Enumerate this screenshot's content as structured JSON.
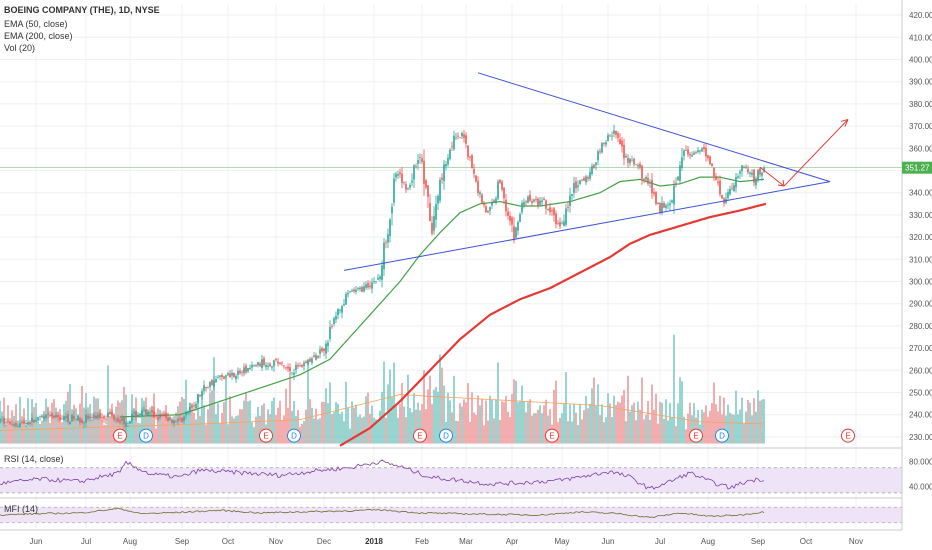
{
  "chart_data": {
    "type": "candlestick",
    "title": "BOEING COMPANY (THE), 1D, NYSE",
    "indicators": [
      "EMA (50, close)",
      "EMA (200, close)",
      "Vol (20)"
    ],
    "last_price": "351.27",
    "price_range": [
      225,
      425
    ],
    "price_ticks": [
      "420.00",
      "410.00",
      "400.00",
      "390.00",
      "380.00",
      "370.00",
      "360.00",
      "350.00",
      "340.00",
      "330.00",
      "320.00",
      "310.00",
      "300.00",
      "290.00",
      "280.00",
      "270.00",
      "260.00",
      "250.00",
      "240.00",
      "230.00"
    ],
    "price_tick_values": [
      420,
      410,
      400,
      390,
      380,
      370,
      360,
      350,
      340,
      330,
      320,
      310,
      300,
      290,
      280,
      270,
      260,
      250,
      240,
      230
    ],
    "x_range": [
      0,
      458
    ],
    "months": [
      {
        "label": "Jun",
        "x": 18
      },
      {
        "label": "Jul",
        "x": 43
      },
      {
        "label": "Aug",
        "x": 65
      },
      {
        "label": "Sep",
        "x": 91
      },
      {
        "label": "Oct",
        "x": 114
      },
      {
        "label": "Nov",
        "x": 138
      },
      {
        "label": "Dec",
        "x": 162
      },
      {
        "label": "2018",
        "x": 187
      },
      {
        "label": "Feb",
        "x": 211
      },
      {
        "label": "Mar",
        "x": 233
      },
      {
        "label": "Apr",
        "x": 256
      },
      {
        "label": "May",
        "x": 281
      },
      {
        "label": "Jun",
        "x": 304
      },
      {
        "label": "Jul",
        "x": 330
      },
      {
        "label": "Aug",
        "x": 354
      },
      {
        "label": "Sep",
        "x": 379
      },
      {
        "label": "Oct",
        "x": 403
      },
      {
        "label": "Nov",
        "x": 428
      }
    ],
    "anchors": [
      [
        0,
        237
      ],
      [
        10,
        236
      ],
      [
        25,
        239
      ],
      [
        40,
        238
      ],
      [
        55,
        240
      ],
      [
        62,
        237
      ],
      [
        70,
        241
      ],
      [
        80,
        239
      ],
      [
        90,
        237
      ],
      [
        96,
        243
      ],
      [
        102,
        252
      ],
      [
        110,
        257
      ],
      [
        120,
        259
      ],
      [
        130,
        263
      ],
      [
        138,
        264
      ],
      [
        145,
        260
      ],
      [
        152,
        263
      ],
      [
        158,
        266
      ],
      [
        163,
        272
      ],
      [
        168,
        285
      ],
      [
        175,
        295
      ],
      [
        182,
        297
      ],
      [
        190,
        302
      ],
      [
        193,
        320
      ],
      [
        198,
        348
      ],
      [
        204,
        342
      ],
      [
        210,
        358
      ],
      [
        216,
        322
      ],
      [
        220,
        345
      ],
      [
        226,
        363
      ],
      [
        232,
        366
      ],
      [
        238,
        344
      ],
      [
        244,
        330
      ],
      [
        250,
        345
      ],
      [
        257,
        320
      ],
      [
        262,
        337
      ],
      [
        272,
        335
      ],
      [
        280,
        325
      ],
      [
        287,
        342
      ],
      [
        295,
        348
      ],
      [
        300,
        360
      ],
      [
        307,
        368
      ],
      [
        312,
        356
      ],
      [
        318,
        352
      ],
      [
        324,
        345
      ],
      [
        330,
        333
      ],
      [
        336,
        338
      ],
      [
        341,
        359
      ],
      [
        346,
        356
      ],
      [
        352,
        360
      ],
      [
        357,
        349
      ],
      [
        362,
        336
      ],
      [
        367,
        345
      ],
      [
        372,
        353
      ],
      [
        377,
        346
      ],
      [
        382,
        351.27
      ]
    ],
    "ema50_anchors": [
      [
        60,
        239
      ],
      [
        90,
        240
      ],
      [
        110,
        246
      ],
      [
        130,
        252
      ],
      [
        150,
        258
      ],
      [
        165,
        265
      ],
      [
        178,
        278
      ],
      [
        190,
        290
      ],
      [
        200,
        300
      ],
      [
        210,
        312
      ],
      [
        220,
        322
      ],
      [
        230,
        331
      ],
      [
        240,
        335
      ],
      [
        250,
        336
      ],
      [
        260,
        334
      ],
      [
        270,
        334
      ],
      [
        285,
        336
      ],
      [
        300,
        340
      ],
      [
        310,
        345
      ],
      [
        320,
        346
      ],
      [
        330,
        343
      ],
      [
        340,
        344
      ],
      [
        350,
        347
      ],
      [
        360,
        347
      ],
      [
        370,
        345
      ],
      [
        382,
        346
      ]
    ],
    "ema200_anchors": [
      [
        170,
        226
      ],
      [
        185,
        234
      ],
      [
        200,
        246
      ],
      [
        215,
        260
      ],
      [
        230,
        274
      ],
      [
        245,
        285
      ],
      [
        260,
        292
      ],
      [
        275,
        297
      ],
      [
        290,
        304
      ],
      [
        305,
        311
      ],
      [
        315,
        317
      ],
      [
        325,
        321
      ],
      [
        340,
        325
      ],
      [
        355,
        329
      ],
      [
        370,
        332
      ],
      [
        383,
        335
      ]
    ],
    "trendline_upper": [
      [
        239,
        394
      ],
      [
        415,
        345
      ]
    ],
    "trendline_lower": [
      [
        172,
        305
      ],
      [
        415,
        345
      ]
    ],
    "projection_down": [
      [
        380,
        351.5
      ],
      [
        392,
        343
      ]
    ],
    "projection_up": [
      [
        392,
        343
      ],
      [
        424,
        373
      ]
    ],
    "last_price_line": 351.27,
    "volume_baseline_price": 227,
    "volume_max_price": 276,
    "volume_ma_anchors": [
      [
        0,
        0.12
      ],
      [
        50,
        0.15
      ],
      [
        100,
        0.18
      ],
      [
        150,
        0.22
      ],
      [
        200,
        0.45
      ],
      [
        250,
        0.4
      ],
      [
        300,
        0.35
      ],
      [
        350,
        0.2
      ],
      [
        382,
        0.18
      ]
    ],
    "earnings_events": [
      {
        "type": "E",
        "x": 60,
        "price": 231
      },
      {
        "type": "D",
        "x": 73,
        "price": 231
      },
      {
        "type": "E",
        "x": 133,
        "price": 231
      },
      {
        "type": "D",
        "x": 147,
        "price": 231
      },
      {
        "type": "E",
        "x": 210,
        "price": 231
      },
      {
        "type": "D",
        "x": 223,
        "price": 231
      },
      {
        "type": "E",
        "x": 276,
        "price": 231
      },
      {
        "type": "E",
        "x": 348,
        "price": 231
      },
      {
        "type": "D",
        "x": 361,
        "price": 231
      },
      {
        "type": "E",
        "x": 424,
        "price": 231,
        "future": true
      }
    ],
    "rsi": {
      "label": "RSI (14, close)",
      "ticks": [
        "80.0000",
        "40.0000"
      ],
      "tick_values": [
        80,
        40
      ],
      "range": [
        25,
        95
      ],
      "band": [
        30,
        70
      ],
      "anchors": [
        [
          0,
          45
        ],
        [
          20,
          52
        ],
        [
          40,
          48
        ],
        [
          60,
          62
        ],
        [
          63,
          78
        ],
        [
          75,
          60
        ],
        [
          90,
          55
        ],
        [
          100,
          66
        ],
        [
          120,
          62
        ],
        [
          140,
          58
        ],
        [
          160,
          66
        ],
        [
          175,
          70
        ],
        [
          190,
          80
        ],
        [
          200,
          72
        ],
        [
          215,
          55
        ],
        [
          230,
          50
        ],
        [
          245,
          44
        ],
        [
          260,
          46
        ],
        [
          280,
          50
        ],
        [
          295,
          58
        ],
        [
          305,
          64
        ],
        [
          315,
          55
        ],
        [
          325,
          36
        ],
        [
          335,
          48
        ],
        [
          345,
          62
        ],
        [
          355,
          48
        ],
        [
          365,
          38
        ],
        [
          375,
          50
        ],
        [
          382,
          52
        ]
      ]
    },
    "mfi": {
      "label": "MFI (14)",
      "range": [
        0,
        100
      ],
      "band": [
        20,
        80
      ],
      "anchors": [
        [
          0,
          50
        ],
        [
          20,
          55
        ],
        [
          40,
          58
        ],
        [
          60,
          75
        ],
        [
          70,
          55
        ],
        [
          90,
          60
        ],
        [
          110,
          68
        ],
        [
          130,
          58
        ],
        [
          150,
          62
        ],
        [
          170,
          65
        ],
        [
          190,
          70
        ],
        [
          210,
          58
        ],
        [
          230,
          55
        ],
        [
          250,
          52
        ],
        [
          270,
          50
        ],
        [
          290,
          62
        ],
        [
          310,
          55
        ],
        [
          325,
          40
        ],
        [
          340,
          58
        ],
        [
          355,
          45
        ],
        [
          370,
          50
        ],
        [
          382,
          62
        ]
      ]
    }
  }
}
